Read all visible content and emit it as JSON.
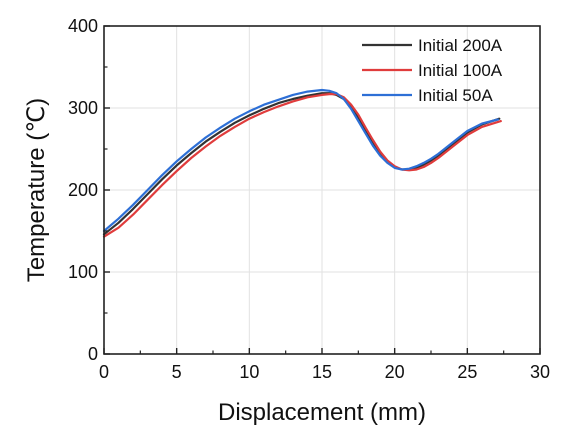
{
  "chart_data": {
    "type": "line",
    "xlabel": "Displacement (mm)",
    "ylabel": "Temperature (℃)",
    "xlim": [
      0,
      30
    ],
    "ylim": [
      0,
      400
    ],
    "xticks": [
      0,
      5,
      10,
      15,
      20,
      25,
      30
    ],
    "yticks": [
      0,
      100,
      200,
      300,
      400
    ],
    "xtick_labels": [
      "0",
      "5",
      "10",
      "15",
      "20",
      "25",
      "30"
    ],
    "ytick_labels": [
      "0",
      "100",
      "200",
      "300",
      "400"
    ],
    "grid": true,
    "legend_position": "top-right",
    "series": [
      {
        "name": "Initial 200A",
        "color": "#333333",
        "x": [
          0,
          1,
          2,
          3,
          4,
          5,
          6,
          7,
          8,
          9,
          10,
          11,
          12,
          13,
          14,
          15,
          15.5,
          16,
          16.5,
          17,
          17.5,
          18,
          18.5,
          19,
          19.5,
          20,
          20.5,
          21,
          21.5,
          22,
          22.5,
          23,
          24,
          25,
          26,
          27.2
        ],
        "y": [
          146,
          160,
          177,
          195,
          213,
          230,
          245,
          259,
          271,
          282,
          291,
          299,
          306,
          311,
          315,
          318,
          318,
          316,
          311,
          301,
          288,
          272,
          257,
          244,
          234,
          228,
          225,
          225,
          227,
          231,
          236,
          242,
          256,
          270,
          280,
          287
        ]
      },
      {
        "name": "Initial 100A",
        "color": "#e03c3c",
        "x": [
          0,
          1,
          2,
          3,
          4,
          5,
          6,
          7,
          8,
          9,
          10,
          11,
          12,
          13,
          14,
          15,
          15.5,
          16,
          16.5,
          17,
          17.5,
          18,
          18.5,
          19,
          19.5,
          20,
          20.5,
          21,
          21.5,
          22,
          22.5,
          23,
          24,
          25,
          26,
          27.3
        ],
        "y": [
          143,
          154,
          170,
          188,
          206,
          223,
          239,
          253,
          266,
          277,
          287,
          295,
          302,
          308,
          313,
          316,
          317,
          317,
          313,
          304,
          292,
          276,
          261,
          247,
          236,
          229,
          225,
          224,
          225,
          228,
          233,
          239,
          253,
          267,
          277,
          284
        ]
      },
      {
        "name": "Initial 50A",
        "color": "#2d6fd6",
        "x": [
          0,
          1,
          2,
          3,
          4,
          5,
          6,
          7,
          8,
          9,
          10,
          11,
          12,
          13,
          14,
          15,
          15.5,
          16,
          16.5,
          17,
          17.5,
          18,
          18.5,
          19,
          19.5,
          20,
          20.5,
          21,
          21.5,
          22,
          22.5,
          23,
          24,
          25,
          26,
          27.1
        ],
        "y": [
          150,
          165,
          182,
          200,
          218,
          235,
          250,
          264,
          276,
          287,
          296,
          304,
          310,
          316,
          320,
          322,
          321,
          318,
          311,
          299,
          284,
          269,
          254,
          242,
          233,
          227,
          225,
          226,
          229,
          233,
          238,
          244,
          258,
          272,
          281,
          286
        ]
      }
    ]
  }
}
